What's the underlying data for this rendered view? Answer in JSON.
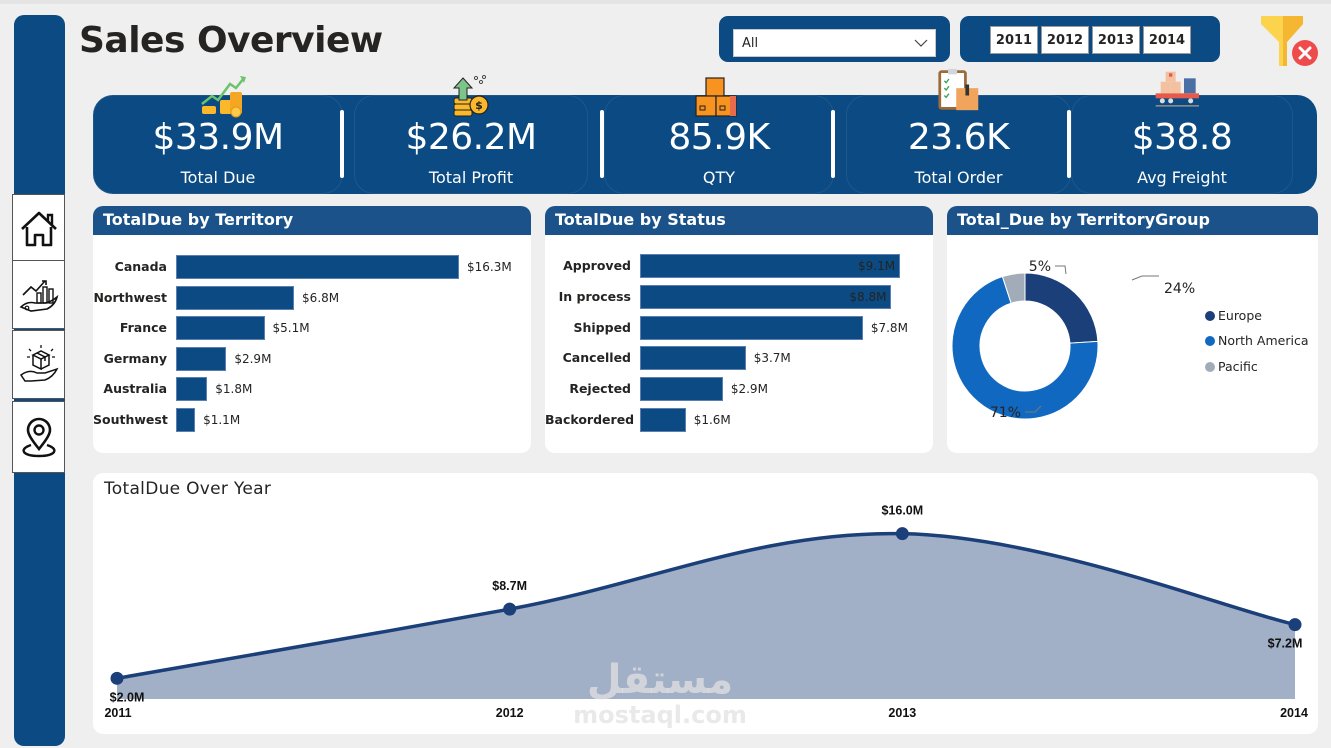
{
  "header": {
    "title": "Sales Overview"
  },
  "slicers": {
    "territory_dropdown": {
      "selected": "All"
    },
    "years": [
      "2011",
      "2012",
      "2013",
      "2014"
    ],
    "clear_filters_icon": "clear-filter-icon"
  },
  "sidebar": {
    "items": [
      {
        "name": "home",
        "icon": "home-icon"
      },
      {
        "name": "sales-analysis",
        "icon": "growth-chart-hand-icon"
      },
      {
        "name": "products",
        "icon": "box-hand-icon"
      },
      {
        "name": "locations",
        "icon": "location-pin-icon"
      }
    ]
  },
  "kpis": [
    {
      "value": "$33.9M",
      "label": "Total Due",
      "icon": "coins-growth-icon"
    },
    {
      "value": "$26.2M",
      "label": "Total Profit",
      "icon": "profit-coins-icon"
    },
    {
      "value": "85.9K",
      "label": "QTY",
      "icon": "boxes-icon"
    },
    {
      "value": "23.6K",
      "label": "Total Order",
      "icon": "clipboard-order-icon"
    },
    {
      "value": "$38.8",
      "label": "Avg Freight",
      "icon": "delivery-truck-icon"
    }
  ],
  "colors": {
    "primary": "#0b4a82",
    "header": "#1a5289",
    "europe": "#1b3f78",
    "north_america": "#1168c0",
    "pacific": "#a2acb9",
    "area_fill": "#a1b0c7",
    "line": "#1b3f78"
  },
  "chart_data": [
    {
      "type": "bar",
      "title": "TotalDue by Territory",
      "orientation": "horizontal",
      "categories": [
        "Canada",
        "Northwest",
        "France",
        "Germany",
        "Australia",
        "Southwest"
      ],
      "values": [
        16.3,
        6.8,
        5.1,
        2.9,
        1.8,
        1.1
      ],
      "labels": [
        "$16.3M",
        "$6.8M",
        "$5.1M",
        "$2.9M",
        "$1.8M",
        "$1.1M"
      ],
      "unit": "$M"
    },
    {
      "type": "bar",
      "title": "TotalDue by Status",
      "orientation": "horizontal",
      "categories": [
        "Approved",
        "In process",
        "Shipped",
        "Cancelled",
        "Rejected",
        "Backordered"
      ],
      "values": [
        9.1,
        8.8,
        7.8,
        3.7,
        2.9,
        1.6
      ],
      "labels": [
        "$9.1M",
        "$8.8M",
        "$7.8M",
        "$3.7M",
        "$2.9M",
        "$1.6M"
      ],
      "unit": "$M"
    },
    {
      "type": "pie",
      "variant": "donut",
      "title": "Total_Due by TerritoryGroup",
      "categories": [
        "Europe",
        "North America",
        "Pacific"
      ],
      "values": [
        24,
        71,
        5
      ],
      "labels": [
        "24%",
        "71%",
        "5%"
      ],
      "legend": "right"
    },
    {
      "type": "area",
      "title": "TotalDue Over Year",
      "x": [
        "2011",
        "2012",
        "2013",
        "2014"
      ],
      "values": [
        2.0,
        8.7,
        16.0,
        7.2
      ],
      "labels": [
        "$2.0M",
        "$8.7M",
        "$16.0M",
        "$7.2M"
      ],
      "ylim": [
        0,
        18
      ],
      "grid": false,
      "unit": "$M"
    }
  ],
  "watermark": {
    "arabic": "مستقل",
    "latin": "mostaql.com"
  }
}
